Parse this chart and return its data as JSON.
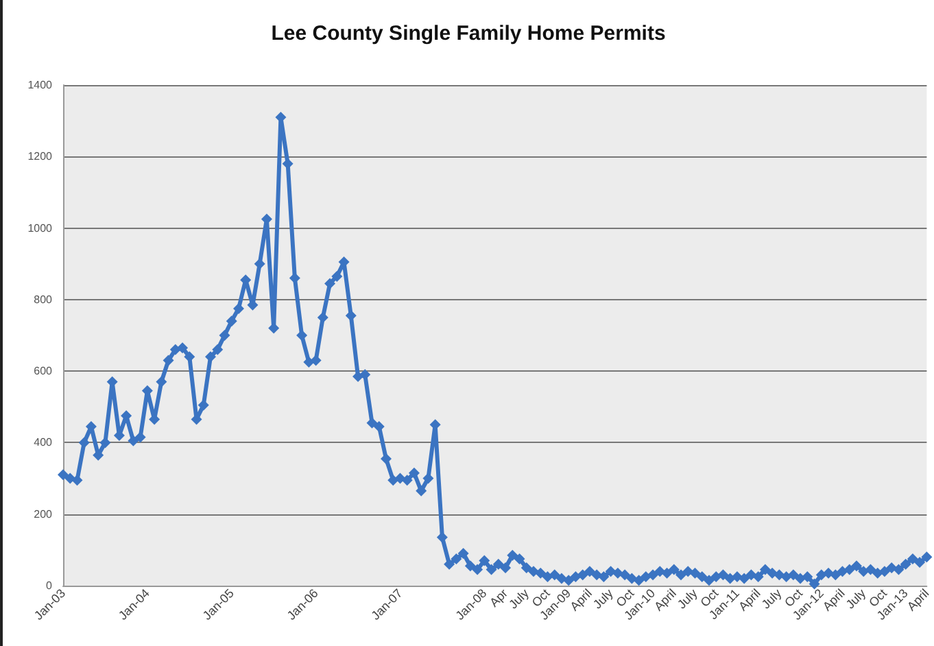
{
  "chart_data": {
    "type": "line",
    "title": "Lee County Single Family Home Permits",
    "categories": [
      "Jan-03",
      null,
      null,
      null,
      null,
      null,
      null,
      null,
      null,
      null,
      null,
      null,
      "Jan-04",
      null,
      null,
      null,
      null,
      null,
      null,
      null,
      null,
      null,
      null,
      null,
      "Jan-05",
      null,
      null,
      null,
      null,
      null,
      null,
      null,
      null,
      null,
      null,
      null,
      "Jan-06",
      null,
      null,
      null,
      null,
      null,
      null,
      null,
      null,
      null,
      null,
      null,
      "Jan-07",
      null,
      null,
      null,
      null,
      null,
      null,
      null,
      null,
      null,
      null,
      null,
      "Jan-08",
      null,
      null,
      "Apr",
      null,
      null,
      "July",
      null,
      null,
      "Oct",
      null,
      null,
      "Jan-09",
      null,
      null,
      "April",
      null,
      null,
      "July",
      null,
      null,
      "Oct",
      null,
      null,
      "Jan-10",
      null,
      null,
      "April",
      null,
      null,
      "July",
      null,
      null,
      "Oct",
      null,
      null,
      "Jan-11",
      null,
      null,
      "April",
      null,
      null,
      "July",
      null,
      null,
      "Oct",
      null,
      null,
      "Jan-12",
      null,
      null,
      "April",
      null,
      null,
      "July",
      null,
      null,
      "Oct",
      null,
      null,
      "Jan-13",
      null,
      null,
      "April"
    ],
    "series": [
      {
        "color": "#3b74c2",
        "values": [
          310,
          300,
          295,
          400,
          445,
          365,
          400,
          570,
          420,
          475,
          405,
          415,
          545,
          465,
          570,
          630,
          660,
          665,
          640,
          465,
          505,
          640,
          660,
          700,
          740,
          775,
          855,
          785,
          900,
          1025,
          720,
          1310,
          1180,
          860,
          700,
          625,
          630,
          750,
          845,
          865,
          905,
          755,
          585,
          590,
          455,
          445,
          355,
          295,
          300,
          295,
          315,
          265,
          300,
          450,
          135,
          60,
          75,
          90,
          55,
          45,
          70,
          45,
          60,
          50,
          85,
          75,
          50,
          40,
          35,
          25,
          30,
          20,
          15,
          25,
          30,
          40,
          30,
          25,
          40,
          35,
          30,
          20,
          15,
          25,
          30,
          40,
          35,
          45,
          30,
          40,
          35,
          25,
          15,
          25,
          30,
          20,
          25,
          20,
          30,
          25,
          45,
          35,
          30,
          25,
          30,
          20,
          25,
          5,
          30,
          35,
          30,
          40,
          45,
          55,
          40,
          45,
          35,
          40,
          50,
          45,
          60,
          75,
          65,
          80
        ]
      }
    ],
    "ylim": [
      0,
      1400
    ],
    "yticks": [
      0,
      200,
      400,
      600,
      800,
      1000,
      1200,
      1400
    ],
    "grid": "y",
    "marker": "diamond",
    "line_style": "solid"
  }
}
